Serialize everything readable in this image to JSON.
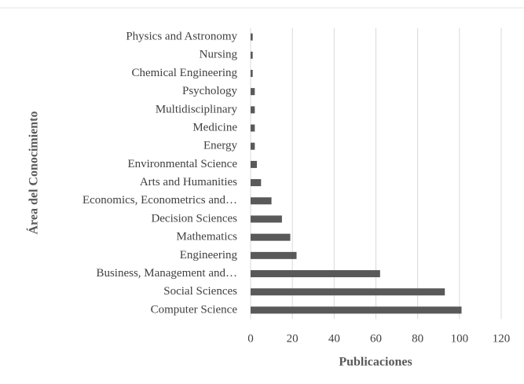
{
  "chart_data": {
    "type": "hbar",
    "xlabel": "Publicaciones",
    "ylabel": "Área del Conocimiento",
    "categories": [
      "Physics and Astronomy",
      "Nursing",
      "Chemical Engineering",
      "Psychology",
      "Multidisciplinary",
      "Medicine",
      "Energy",
      "Environmental Science",
      "Arts and Humanities",
      "Economics, Econometrics and…",
      "Decision Sciences",
      "Mathematics",
      "Engineering",
      "Business, Management and…",
      "Social Sciences",
      "Computer Science"
    ],
    "values": [
      1,
      1,
      1,
      2,
      2,
      2,
      2,
      3,
      5,
      10,
      15,
      19,
      22,
      62,
      93,
      101
    ],
    "color": "#595959",
    "xlim": [
      0,
      120
    ],
    "xticks": [
      0,
      20,
      40,
      60,
      80,
      100,
      120
    ],
    "grid": true
  }
}
